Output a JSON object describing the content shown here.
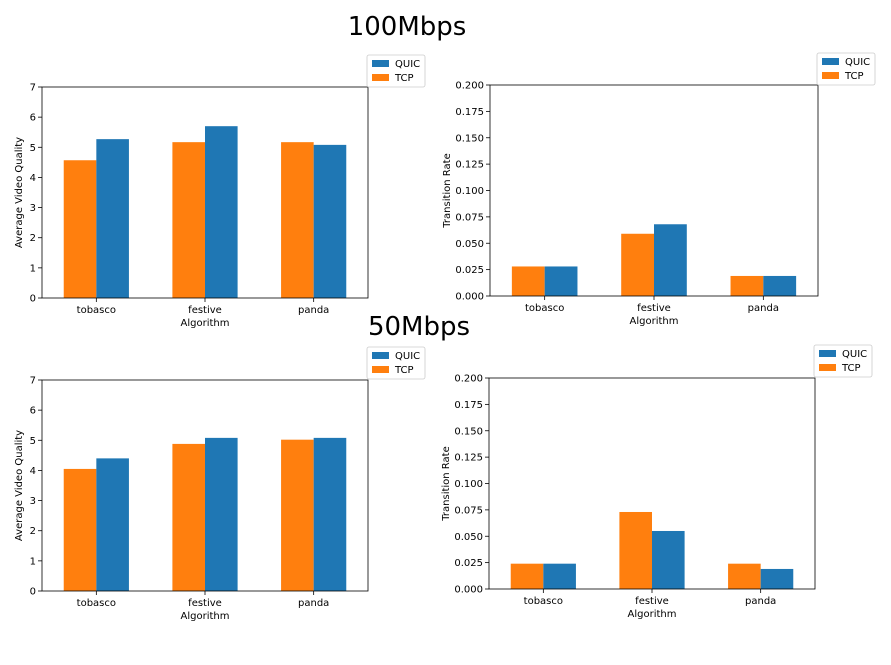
{
  "sections": [
    {
      "title": "100Mbps"
    },
    {
      "title": "50Mbps"
    }
  ],
  "colors": {
    "QUIC": "#1f77b4",
    "TCP": "#ff7f0e"
  },
  "chart_data": [
    {
      "type": "bar",
      "categories": [
        "tobasco",
        "festive",
        "panda"
      ],
      "series": [
        {
          "name": "TCP",
          "values": [
            4.57,
            5.17,
            5.17
          ]
        },
        {
          "name": "QUIC",
          "values": [
            5.27,
            5.7,
            5.08
          ]
        }
      ],
      "xlabel": "Algorithm",
      "ylabel": "Average Video Quality",
      "ylim": [
        0,
        7
      ],
      "yticks": [
        "0",
        "1",
        "2",
        "3",
        "4",
        "5",
        "6",
        "7"
      ],
      "legend": [
        "QUIC",
        "TCP"
      ],
      "legend_position": "outside-top-right"
    },
    {
      "type": "bar",
      "categories": [
        "tobasco",
        "festive",
        "panda"
      ],
      "series": [
        {
          "name": "TCP",
          "values": [
            0.028,
            0.059,
            0.019
          ]
        },
        {
          "name": "QUIC",
          "values": [
            0.028,
            0.068,
            0.019
          ]
        }
      ],
      "xlabel": "Algorithm",
      "ylabel": "Transition Rate",
      "ylim": [
        0,
        0.2
      ],
      "yticks": [
        "0.000",
        "0.025",
        "0.050",
        "0.075",
        "0.100",
        "0.125",
        "0.150",
        "0.175",
        "0.200"
      ],
      "legend": [
        "QUIC",
        "TCP"
      ],
      "legend_position": "outside-top-right"
    },
    {
      "type": "bar",
      "categories": [
        "tobasco",
        "festive",
        "panda"
      ],
      "series": [
        {
          "name": "TCP",
          "values": [
            4.05,
            4.88,
            5.02
          ]
        },
        {
          "name": "QUIC",
          "values": [
            4.4,
            5.08,
            5.08
          ]
        }
      ],
      "xlabel": "Algorithm",
      "ylabel": "Average Video Quality",
      "ylim": [
        0,
        7
      ],
      "yticks": [
        "0",
        "1",
        "2",
        "3",
        "4",
        "5",
        "6",
        "7"
      ],
      "legend": [
        "QUIC",
        "TCP"
      ],
      "legend_position": "outside-top-right"
    },
    {
      "type": "bar",
      "categories": [
        "tobasco",
        "festive",
        "panda"
      ],
      "series": [
        {
          "name": "TCP",
          "values": [
            0.024,
            0.073,
            0.024
          ]
        },
        {
          "name": "QUIC",
          "values": [
            0.024,
            0.055,
            0.019
          ]
        }
      ],
      "xlabel": "Algorithm",
      "ylabel": "Transition Rate",
      "ylim": [
        0,
        0.2
      ],
      "yticks": [
        "0.000",
        "0.025",
        "0.050",
        "0.075",
        "0.100",
        "0.125",
        "0.150",
        "0.175",
        "0.200"
      ],
      "legend": [
        "QUIC",
        "TCP"
      ],
      "legend_position": "outside-top-right"
    }
  ]
}
